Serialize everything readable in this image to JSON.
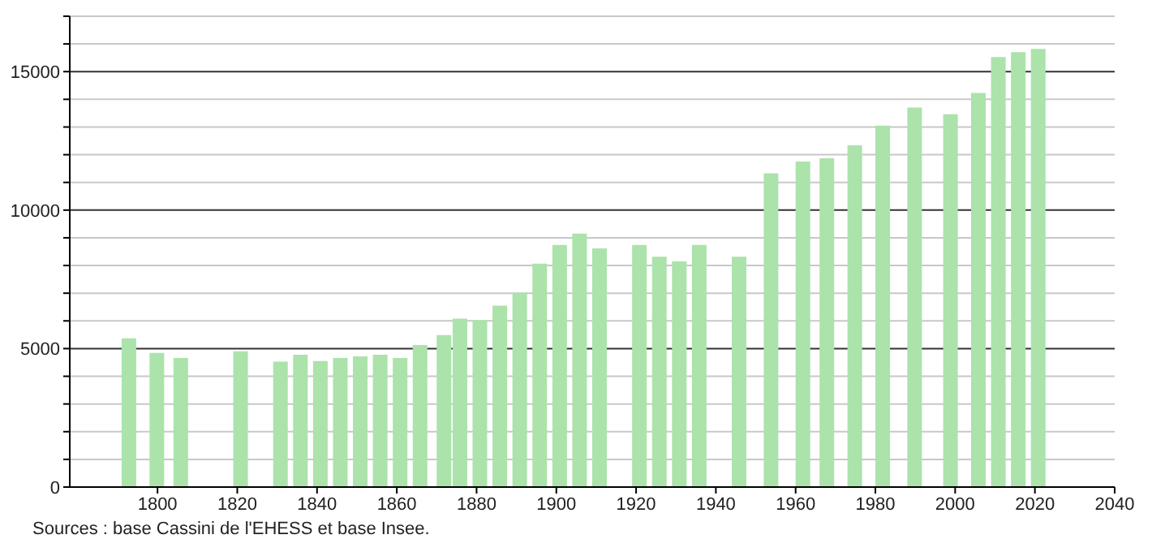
{
  "chart_data": {
    "type": "bar",
    "x": [
      1793,
      1800,
      1806,
      1821,
      1831,
      1836,
      1841,
      1846,
      1851,
      1856,
      1861,
      1866,
      1872,
      1876,
      1881,
      1886,
      1891,
      1896,
      1901,
      1906,
      1911,
      1921,
      1926,
      1931,
      1936,
      1946,
      1954,
      1962,
      1968,
      1975,
      1982,
      1990,
      1999,
      2006,
      2011,
      2016,
      2021
    ],
    "values": [
      5370,
      4840,
      4660,
      4900,
      4530,
      4780,
      4550,
      4660,
      4720,
      4780,
      4660,
      5130,
      5490,
      6080,
      6020,
      6550,
      7020,
      8070,
      8740,
      9150,
      8620,
      8740,
      8320,
      8150,
      8740,
      8320,
      11330,
      11750,
      11870,
      12340,
      13050,
      13700,
      13460,
      14230,
      15530,
      15700,
      15820
    ],
    "color": "#abe3ab",
    "xlim": [
      1778,
      2040
    ],
    "xticks": [
      1800,
      1820,
      1840,
      1860,
      1880,
      1900,
      1920,
      1940,
      1960,
      1980,
      2000,
      2020,
      2040
    ],
    "ylim": [
      0,
      17000
    ],
    "yticks": [
      0,
      {
        "value": 1000,
        "label": null
      },
      {
        "value": 2000,
        "label": null
      },
      {
        "value": 3000,
        "label": null
      },
      {
        "value": 4000,
        "label": null
      },
      5000,
      {
        "value": 6000,
        "label": null
      },
      {
        "value": 7000,
        "label": null
      },
      {
        "value": 8000,
        "label": null
      },
      {
        "value": 9000,
        "label": null
      },
      10000,
      {
        "value": 11000,
        "label": null
      },
      {
        "value": 12000,
        "label": null
      },
      {
        "value": 13000,
        "label": null
      },
      {
        "value": 14000,
        "label": null
      },
      15000,
      {
        "value": 16000,
        "label": null
      },
      {
        "value": 17000,
        "label": null
      }
    ],
    "grid": "y",
    "annotations": [
      "Sources : base Cassini de l'EHESS et base Insee."
    ]
  }
}
